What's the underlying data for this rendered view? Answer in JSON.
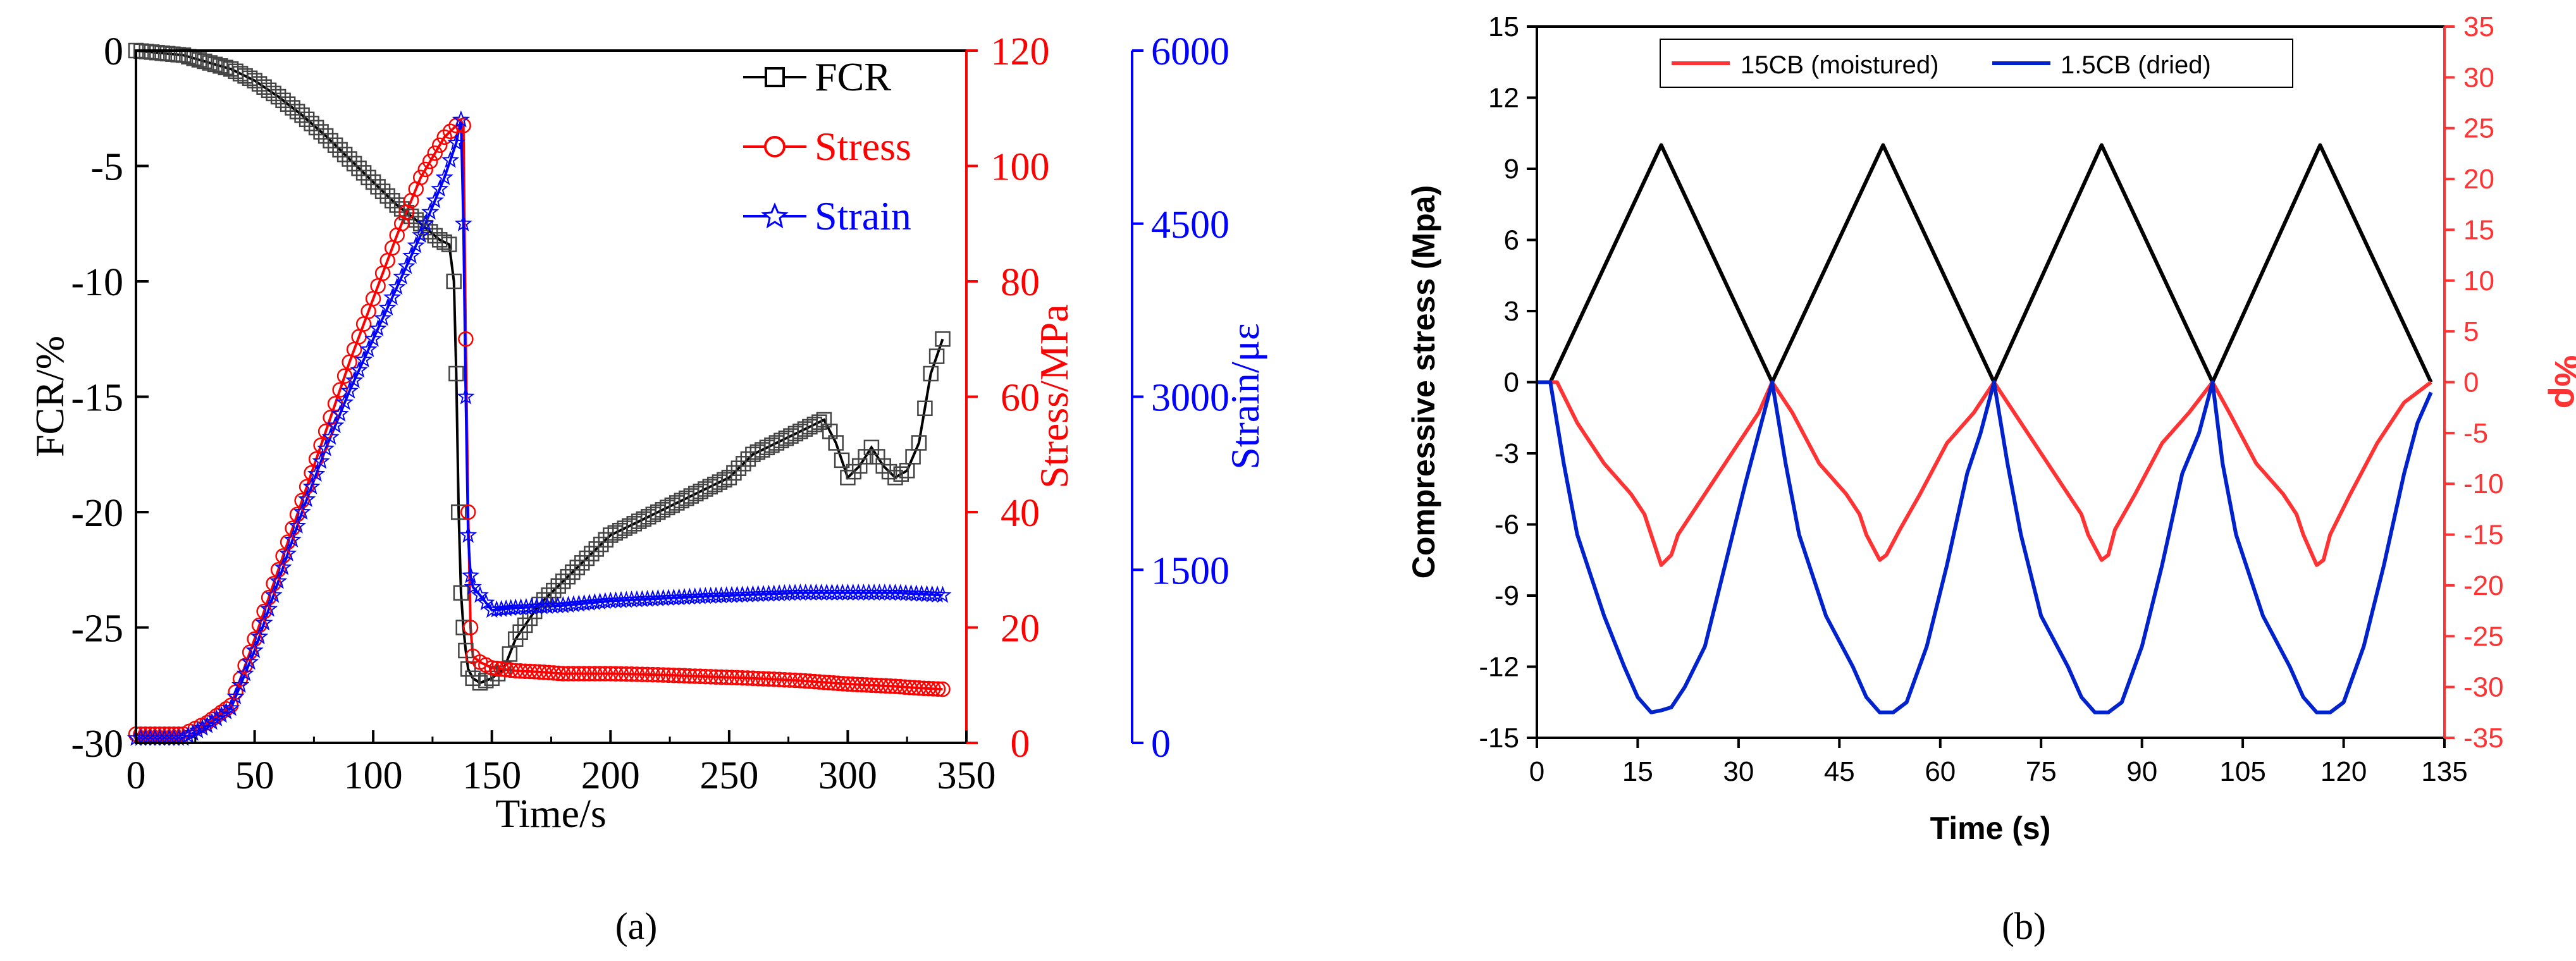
{
  "colors": {
    "fcr": "#000000",
    "stress": "#ff0000",
    "strain": "#0000ff",
    "black": "#000000",
    "red": "#ff3333",
    "blue": "#0022cc"
  },
  "panel_a": {
    "caption": "(a)"
  },
  "panel_b": {
    "caption": "(b)"
  },
  "chart_data": [
    {
      "id": "a",
      "type": "line",
      "xlabel": "Time/s",
      "xlim": [
        0,
        350
      ],
      "xticks": [
        0,
        50,
        100,
        150,
        200,
        250,
        300,
        350
      ],
      "axes": {
        "fcr": {
          "label": "FCR/%",
          "lim": [
            -30,
            0
          ],
          "ticks": [
            0,
            -5,
            -10,
            -15,
            -20,
            -25,
            -30
          ]
        },
        "stress": {
          "label": "Stress/MPa",
          "lim": [
            0,
            120
          ],
          "ticks": [
            0,
            20,
            40,
            60,
            80,
            100,
            120
          ]
        },
        "strain": {
          "label": "Strain/με",
          "lim": [
            0,
            6000
          ],
          "ticks": [
            0,
            1500,
            3000,
            4500,
            6000
          ]
        }
      },
      "legend": {
        "position": "top-right",
        "entries": [
          "FCR",
          "Stress",
          "Strain"
        ]
      },
      "series": [
        {
          "name": "FCR",
          "axis": "fcr",
          "marker": "square",
          "x": [
            0,
            20,
            40,
            50,
            60,
            70,
            80,
            90,
            100,
            110,
            120,
            128,
            132,
            134,
            135,
            136,
            137,
            138,
            139,
            140,
            142,
            145,
            150,
            155,
            160,
            170,
            180,
            190,
            200,
            210,
            220,
            230,
            240,
            250,
            260,
            270,
            280,
            290,
            295,
            300,
            305,
            310,
            315,
            320,
            325,
            330,
            335,
            340
          ],
          "y": [
            0,
            -0.2,
            -0.8,
            -1.3,
            -2.0,
            -2.8,
            -3.7,
            -4.7,
            -5.7,
            -6.7,
            -7.5,
            -8.2,
            -8.4,
            -10,
            -14,
            -20,
            -23.5,
            -25,
            -26,
            -26.8,
            -27.2,
            -27.4,
            -27.2,
            -26.8,
            -25.5,
            -24,
            -23,
            -22,
            -21,
            -20.5,
            -20,
            -19.5,
            -19,
            -18.5,
            -17.5,
            -17,
            -16.5,
            -16,
            -17,
            -18.5,
            -18,
            -17.2,
            -18,
            -18.5,
            -18.2,
            -17,
            -14,
            -12.5
          ]
        },
        {
          "name": "Stress",
          "axis": "stress",
          "marker": "circle",
          "x": [
            0,
            10,
            20,
            25,
            30,
            40,
            50,
            60,
            70,
            80,
            90,
            100,
            110,
            120,
            130,
            135,
            138,
            139,
            140,
            141,
            142,
            145,
            150,
            160,
            170,
            180,
            200,
            220,
            240,
            260,
            280,
            290,
            300,
            310,
            320,
            330,
            340
          ],
          "y": [
            1.5,
            1.5,
            1.5,
            2.5,
            3.5,
            6.5,
            18,
            30,
            42,
            54,
            66,
            77,
            88,
            98,
            105,
            107,
            107,
            70,
            40,
            20,
            15,
            14,
            13,
            12.5,
            12.3,
            12,
            12,
            11.8,
            11.5,
            11.2,
            10.8,
            10.5,
            10.2,
            10,
            9.8,
            9.5,
            9.3
          ]
        },
        {
          "name": "Strain",
          "axis": "strain",
          "marker": "star",
          "x": [
            0,
            10,
            20,
            30,
            40,
            50,
            60,
            70,
            80,
            90,
            100,
            110,
            120,
            130,
            135,
            137,
            138,
            139,
            140,
            141,
            142,
            145,
            150,
            160,
            180,
            200,
            220,
            240,
            260,
            280,
            300,
            320,
            340
          ],
          "y": [
            40,
            40,
            40,
            150,
            300,
            800,
            1400,
            2000,
            2550,
            3050,
            3500,
            3950,
            4400,
            4900,
            5200,
            5400,
            4500,
            3000,
            1800,
            1450,
            1350,
            1280,
            1150,
            1170,
            1190,
            1230,
            1250,
            1270,
            1285,
            1300,
            1300,
            1300,
            1280
          ]
        }
      ]
    },
    {
      "id": "b",
      "type": "line",
      "xlabel": "Time (s)",
      "xlim": [
        0,
        135
      ],
      "xticks": [
        0,
        15,
        30,
        45,
        60,
        75,
        90,
        105,
        120,
        135
      ],
      "axes": {
        "stress": {
          "label": "Compressive stress (Mpa)",
          "lim": [
            -15,
            15
          ],
          "ticks": [
            15,
            12,
            9,
            6,
            3,
            0,
            -3,
            -6,
            -9,
            -12,
            -15
          ]
        },
        "rho": {
          "label": "%ρ",
          "lim": [
            -35,
            35
          ],
          "ticks": [
            35,
            30,
            25,
            20,
            15,
            10,
            5,
            0,
            -5,
            -10,
            -15,
            -20,
            -25,
            -30,
            -35
          ]
        }
      },
      "legend": {
        "position": "top-center",
        "entries": [
          "15CB (moistured)",
          "1.5CB (dried)"
        ]
      },
      "series": [
        {
          "name": "Compressive stress",
          "axis": "stress",
          "color_key": "black",
          "x": [
            0,
            2,
            18.5,
            35,
            51.5,
            68,
            84,
            100.5,
            116.5,
            133
          ],
          "y": [
            0,
            0,
            10,
            0,
            10,
            0,
            10,
            0,
            10,
            0
          ]
        },
        {
          "name": "15CB (moistured)",
          "axis": "rho",
          "color_key": "red",
          "x": [
            0,
            3,
            6,
            10,
            14,
            16,
            17,
            18.5,
            20,
            21,
            23,
            26,
            30,
            33,
            35,
            38,
            42,
            46,
            48,
            49,
            51,
            52,
            54,
            57,
            61,
            65,
            68,
            71,
            75,
            79,
            81,
            82,
            84,
            85,
            86,
            89,
            93,
            97,
            100.5,
            103,
            107,
            111,
            113,
            114,
            116,
            117,
            118,
            121,
            125,
            129,
            133
          ],
          "y": [
            0,
            0,
            -4,
            -8,
            -11,
            -13,
            -15,
            -18,
            -17,
            -15,
            -13,
            -10,
            -6,
            -3,
            0,
            -3,
            -8,
            -11,
            -13,
            -15,
            -17.5,
            -17,
            -14.5,
            -11,
            -6,
            -3,
            0,
            -3,
            -7,
            -11,
            -13,
            -15,
            -17.5,
            -17,
            -14.5,
            -11,
            -6,
            -3,
            0,
            -3,
            -8,
            -11,
            -13,
            -15,
            -18,
            -17.5,
            -15,
            -11,
            -6,
            -2,
            0
          ]
        },
        {
          "name": "1.5CB (dried)",
          "axis": "rho",
          "color_key": "blue",
          "x": [
            0,
            2,
            4,
            6,
            10,
            13,
            15,
            17,
            18.5,
            20,
            22,
            25,
            28,
            31,
            33,
            35,
            37,
            39,
            43,
            47,
            49,
            51,
            53,
            55,
            58,
            61,
            64,
            66,
            68,
            70,
            72,
            75,
            79,
            81,
            83,
            85,
            87,
            90,
            93,
            96,
            98.5,
            100.5,
            102,
            104,
            108,
            112,
            114,
            116,
            118,
            120,
            123,
            126,
            129,
            131,
            133
          ],
          "y": [
            0,
            0,
            -8,
            -15,
            -23,
            -28,
            -31,
            -32.5,
            -32.3,
            -32,
            -30,
            -26,
            -18,
            -10,
            -5,
            0,
            -8,
            -15,
            -23,
            -28,
            -31,
            -32.5,
            -32.5,
            -31.5,
            -26,
            -18,
            -9,
            -5,
            0,
            -8,
            -15,
            -23,
            -28,
            -31,
            -32.5,
            -32.5,
            -31.5,
            -26,
            -18,
            -9,
            -5,
            0,
            -8,
            -15,
            -23,
            -28,
            -31,
            -32.5,
            -32.5,
            -31.5,
            -26,
            -18,
            -9,
            -4,
            -1
          ]
        }
      ]
    }
  ]
}
